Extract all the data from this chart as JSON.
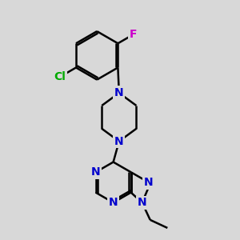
{
  "background_color": "#d8d8d8",
  "bond_color": "#000000",
  "N_color": "#0000cc",
  "Cl_color": "#00aa00",
  "F_color": "#cc00cc",
  "bond_width": 1.8,
  "font_size": 10,
  "fig_size": [
    3.0,
    3.0
  ],
  "dpi": 100,
  "xlim": [
    0,
    10
  ],
  "ylim": [
    0,
    10
  ]
}
